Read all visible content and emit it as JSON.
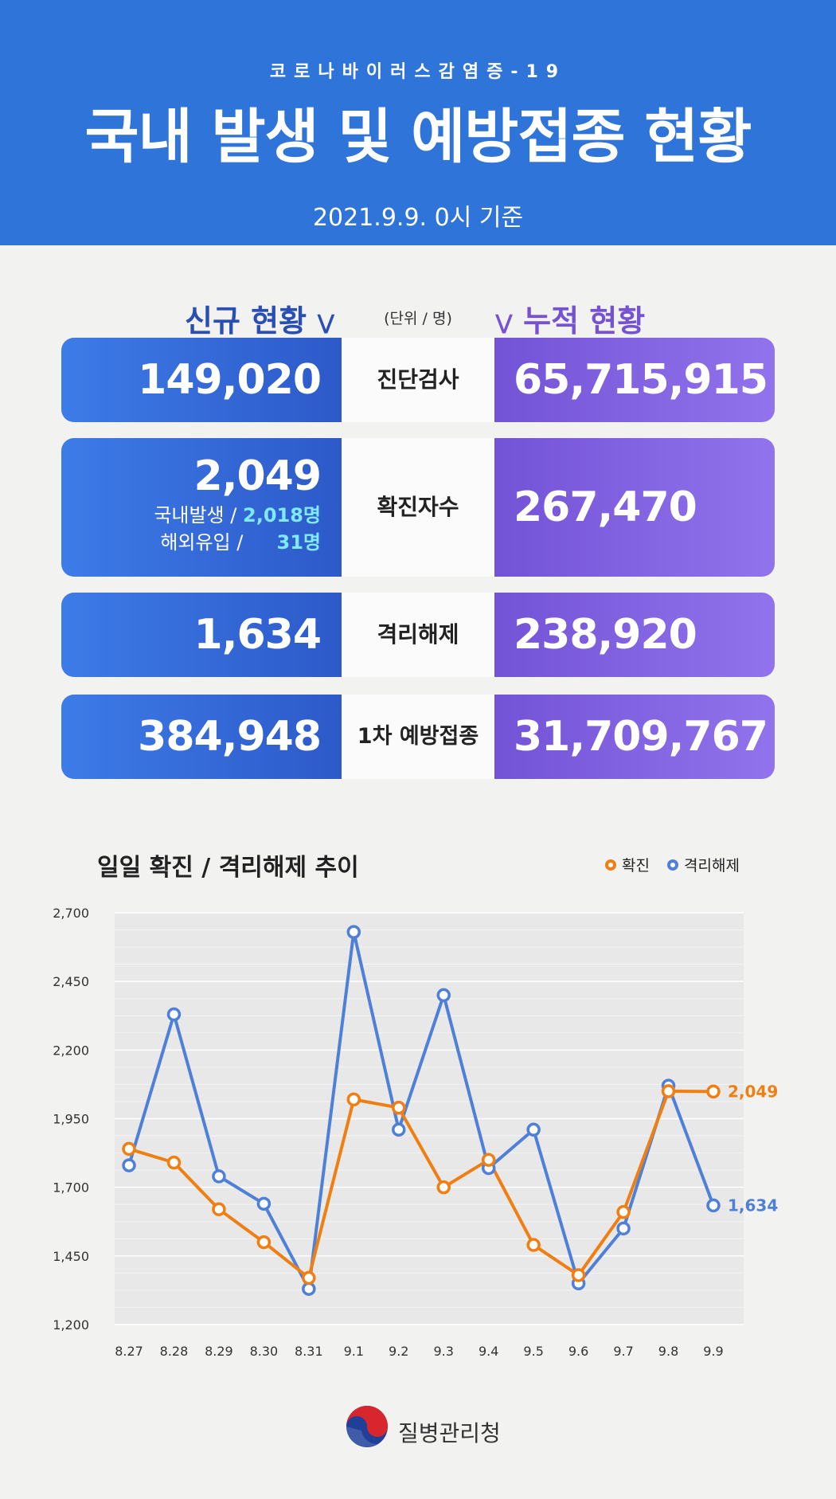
{
  "header": {
    "subtitle": "코로나바이러스감염증-19",
    "title": "국내 발생 및 예방접종 현황",
    "date": "2021.9.9. 0시 기준"
  },
  "colors": {
    "header_bg": "#2f74d9",
    "new_blue": "#2d59c9",
    "cum_purple": "#7552cf",
    "confirmed_line": "#f07f13",
    "released_line": "#4f80d8"
  },
  "summary": {
    "new_heading": "신규 현황",
    "cum_heading": "누적 현황",
    "unit": "(단위 / 명)",
    "rows": [
      {
        "label": "진단검사",
        "new": "149,020",
        "cum": "65,715,915"
      },
      {
        "label": "확진자수",
        "new": "2,049",
        "cum": "267,470",
        "breakdown": [
          {
            "label": "국내발생 /",
            "value": "2,018명"
          },
          {
            "label": "해외유입 /",
            "value": "31명"
          }
        ]
      },
      {
        "label": "격리해제",
        "new": "1,634",
        "cum": "238,920"
      },
      {
        "label": "1차 예방접종",
        "new": "384,948",
        "cum": "31,709,767"
      }
    ]
  },
  "chart_data": {
    "type": "line",
    "title": "일일 확진 / 격리해제 추이",
    "categories": [
      "8.27",
      "8.28",
      "8.29",
      "8.30",
      "8.31",
      "9.1",
      "9.2",
      "9.3",
      "9.4",
      "9.5",
      "9.6",
      "9.7",
      "9.8",
      "9.9"
    ],
    "ylim": [
      1200,
      2700
    ],
    "yticks": [
      1200,
      1450,
      1700,
      1950,
      2200,
      2450,
      2700
    ],
    "ytick_labels": [
      "1,200",
      "1,450",
      "1,700",
      "1,950",
      "2,200",
      "2,450",
      "2,700"
    ],
    "grid": true,
    "legend_position": "top-right",
    "series": [
      {
        "name": "확진",
        "color": "#f07f13",
        "values": [
          1840,
          1790,
          1620,
          1500,
          1370,
          2020,
          1990,
          1700,
          1800,
          1490,
          1380,
          1610,
          2050,
          2049
        ],
        "end_label": "2,049"
      },
      {
        "name": "격리해제",
        "color": "#4f80d8",
        "values": [
          1780,
          2330,
          1740,
          1640,
          1330,
          2630,
          1910,
          2400,
          1770,
          1910,
          1350,
          1550,
          2070,
          1634
        ],
        "end_label": "1,634"
      }
    ]
  },
  "footer": {
    "agency": "질병관리청"
  }
}
